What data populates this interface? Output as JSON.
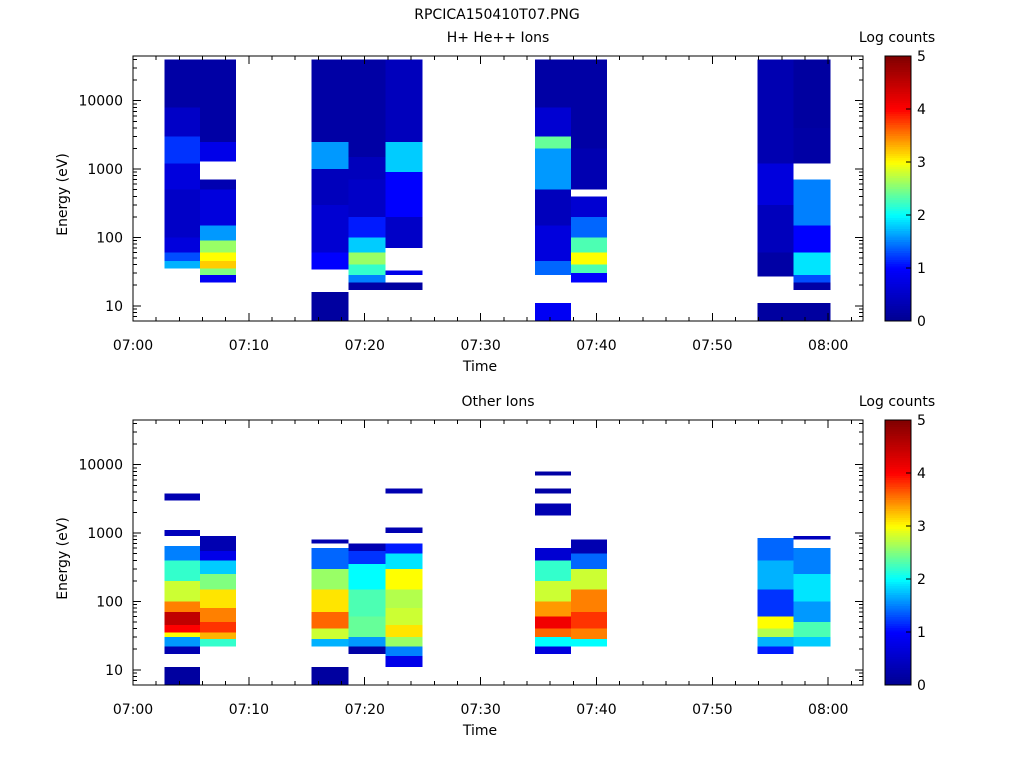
{
  "figure_title": "RPCICA150410T07.PNG",
  "colors": {
    "colormap": [
      "#00008f",
      "#0000ff",
      "#00ffff",
      "#ffff00",
      "#ff0000",
      "#800000"
    ],
    "empty": "#ffffff"
  },
  "chart_data": [
    {
      "type": "heatmap",
      "title": "H+ He++ Ions",
      "xlabel": "Time",
      "ylabel": "Energy (eV)",
      "colorbar_label": "Log counts",
      "colorbar_range": [
        0,
        5
      ],
      "colorbar_ticks": [
        "0",
        "1",
        "2",
        "3",
        "4",
        "5"
      ],
      "ylim": [
        6,
        45000
      ],
      "yscale": "log",
      "yticks": [
        {
          "v": 10,
          "label": "10"
        },
        {
          "v": 100,
          "label": "100"
        },
        {
          "v": 1000,
          "label": "1000"
        },
        {
          "v": 10000,
          "label": "10000"
        }
      ],
      "xlim_minutes": [
        0,
        63
      ],
      "xticks": [
        {
          "m": 0,
          "label": "07:00"
        },
        {
          "m": 10,
          "label": "07:10"
        },
        {
          "m": 20,
          "label": "07:20"
        },
        {
          "m": 30,
          "label": "07:30"
        },
        {
          "m": 40,
          "label": "07:40"
        },
        {
          "m": 50,
          "label": "07:50"
        },
        {
          "m": 60,
          "label": "08:00"
        }
      ],
      "columns": [
        {
          "t0": 2.7,
          "t1": 5.8,
          "bands": [
            {
              "e0": 35,
              "e1": 45,
              "v": 1.7
            },
            {
              "e0": 45,
              "e1": 60,
              "v": 1.3
            },
            {
              "e0": 60,
              "e1": 100,
              "v": 0.7
            },
            {
              "e0": 100,
              "e1": 500,
              "v": 0.5
            },
            {
              "e0": 500,
              "e1": 1200,
              "v": 0.7
            },
            {
              "e0": 1200,
              "e1": 3000,
              "v": 1.2
            },
            {
              "e0": 3000,
              "e1": 8000,
              "v": 0.5
            },
            {
              "e0": 8000,
              "e1": 40000,
              "v": 0.2
            }
          ]
        },
        {
          "t0": 5.8,
          "t1": 8.9,
          "bands": [
            {
              "e0": 22,
              "e1": 28,
              "v": 0.9
            },
            {
              "e0": 28,
              "e1": 35,
              "v": 2.5
            },
            {
              "e0": 35,
              "e1": 45,
              "v": 3.2
            },
            {
              "e0": 45,
              "e1": 60,
              "v": 3.0
            },
            {
              "e0": 60,
              "e1": 90,
              "v": 2.6
            },
            {
              "e0": 90,
              "e1": 150,
              "v": 1.6
            },
            {
              "e0": 150,
              "e1": 500,
              "v": 0.7
            },
            {
              "e0": 500,
              "e1": 700,
              "v": 0.3
            },
            {
              "e0": 1300,
              "e1": 2500,
              "v": 0.8
            },
            {
              "e0": 2500,
              "e1": 40000,
              "v": 0.2
            }
          ]
        },
        {
          "t0": 15.4,
          "t1": 18.6,
          "bands": [
            {
              "e0": 6,
              "e1": 16,
              "v": 0.15
            },
            {
              "e0": 34,
              "e1": 60,
              "v": 1.0
            },
            {
              "e0": 60,
              "e1": 300,
              "v": 0.6
            },
            {
              "e0": 300,
              "e1": 1000,
              "v": 0.4
            },
            {
              "e0": 1000,
              "e1": 2500,
              "v": 1.6
            },
            {
              "e0": 2500,
              "e1": 40000,
              "v": 0.2
            }
          ]
        },
        {
          "t0": 18.6,
          "t1": 21.8,
          "bands": [
            {
              "e0": 17,
              "e1": 22,
              "v": 0.2
            },
            {
              "e0": 22,
              "e1": 28,
              "v": 1.5
            },
            {
              "e0": 28,
              "e1": 40,
              "v": 2.2
            },
            {
              "e0": 40,
              "e1": 60,
              "v": 2.6
            },
            {
              "e0": 60,
              "e1": 100,
              "v": 1.8
            },
            {
              "e0": 100,
              "e1": 200,
              "v": 1.1
            },
            {
              "e0": 200,
              "e1": 700,
              "v": 0.5
            },
            {
              "e0": 700,
              "e1": 1500,
              "v": 0.4
            },
            {
              "e0": 1500,
              "e1": 40000,
              "v": 0.2
            }
          ]
        },
        {
          "t0": 21.8,
          "t1": 25.0,
          "bands": [
            {
              "e0": 17,
              "e1": 22,
              "v": 0.15
            },
            {
              "e0": 28,
              "e1": 33,
              "v": 0.8
            },
            {
              "e0": 70,
              "e1": 200,
              "v": 0.5
            },
            {
              "e0": 200,
              "e1": 900,
              "v": 1.0
            },
            {
              "e0": 900,
              "e1": 2500,
              "v": 1.8
            },
            {
              "e0": 2500,
              "e1": 40000,
              "v": 0.4
            }
          ]
        },
        {
          "t0": 34.7,
          "t1": 37.8,
          "bands": [
            {
              "e0": 6,
              "e1": 11,
              "v": 0.9
            },
            {
              "e0": 28,
              "e1": 45,
              "v": 1.4
            },
            {
              "e0": 45,
              "e1": 150,
              "v": 0.7
            },
            {
              "e0": 150,
              "e1": 500,
              "v": 0.4
            },
            {
              "e0": 500,
              "e1": 2000,
              "v": 1.6
            },
            {
              "e0": 2000,
              "e1": 3000,
              "v": 2.4
            },
            {
              "e0": 3000,
              "e1": 8000,
              "v": 0.6
            },
            {
              "e0": 8000,
              "e1": 40000,
              "v": 0.2
            }
          ]
        },
        {
          "t0": 37.8,
          "t1": 40.9,
          "bands": [
            {
              "e0": 22,
              "e1": 30,
              "v": 1.0
            },
            {
              "e0": 30,
              "e1": 40,
              "v": 2.3
            },
            {
              "e0": 40,
              "e1": 60,
              "v": 3.0
            },
            {
              "e0": 60,
              "e1": 100,
              "v": 2.3
            },
            {
              "e0": 100,
              "e1": 200,
              "v": 1.4
            },
            {
              "e0": 200,
              "e1": 400,
              "v": 0.6
            },
            {
              "e0": 500,
              "e1": 2000,
              "v": 0.3
            },
            {
              "e0": 2000,
              "e1": 40000,
              "v": 0.2
            }
          ]
        },
        {
          "t0": 53.9,
          "t1": 57.0,
          "bands": [
            {
              "e0": 6,
              "e1": 11,
              "v": 0.15
            },
            {
              "e0": 27,
              "e1": 60,
              "v": 0.2
            },
            {
              "e0": 60,
              "e1": 300,
              "v": 0.4
            },
            {
              "e0": 300,
              "e1": 1200,
              "v": 0.7
            },
            {
              "e0": 1200,
              "e1": 40000,
              "v": 0.3
            }
          ]
        },
        {
          "t0": 57.0,
          "t1": 60.2,
          "bands": [
            {
              "e0": 6,
              "e1": 11,
              "v": 0.15
            },
            {
              "e0": 17,
              "e1": 22,
              "v": 0.2
            },
            {
              "e0": 22,
              "e1": 28,
              "v": 1.3
            },
            {
              "e0": 28,
              "e1": 60,
              "v": 1.9
            },
            {
              "e0": 60,
              "e1": 150,
              "v": 1.0
            },
            {
              "e0": 150,
              "e1": 700,
              "v": 1.5
            },
            {
              "e0": 1200,
              "e1": 4000,
              "v": 0.2
            },
            {
              "e0": 4000,
              "e1": 40000,
              "v": 0.15
            }
          ]
        }
      ]
    },
    {
      "type": "heatmap",
      "title": "Other Ions",
      "xlabel": "Time",
      "ylabel": "Energy (eV)",
      "colorbar_label": "Log counts",
      "colorbar_range": [
        0,
        5
      ],
      "colorbar_ticks": [
        "0",
        "1",
        "2",
        "3",
        "4",
        "5"
      ],
      "ylim": [
        6,
        45000
      ],
      "yscale": "log",
      "yticks": [
        {
          "v": 10,
          "label": "10"
        },
        {
          "v": 100,
          "label": "100"
        },
        {
          "v": 1000,
          "label": "1000"
        },
        {
          "v": 10000,
          "label": "10000"
        }
      ],
      "xlim_minutes": [
        0,
        63
      ],
      "xticks": [
        {
          "m": 0,
          "label": "07:00"
        },
        {
          "m": 10,
          "label": "07:10"
        },
        {
          "m": 20,
          "label": "07:20"
        },
        {
          "m": 30,
          "label": "07:30"
        },
        {
          "m": 40,
          "label": "07:40"
        },
        {
          "m": 50,
          "label": "07:50"
        },
        {
          "m": 60,
          "label": "08:00"
        }
      ],
      "columns": [
        {
          "t0": 2.7,
          "t1": 5.8,
          "bands": [
            {
              "e0": 6,
              "e1": 11,
              "v": 0.15
            },
            {
              "e0": 17,
              "e1": 22,
              "v": 0.3
            },
            {
              "e0": 22,
              "e1": 30,
              "v": 1.6
            },
            {
              "e0": 30,
              "e1": 35,
              "v": 3.0
            },
            {
              "e0": 35,
              "e1": 45,
              "v": 4.0
            },
            {
              "e0": 45,
              "e1": 70,
              "v": 4.5
            },
            {
              "e0": 70,
              "e1": 100,
              "v": 3.5
            },
            {
              "e0": 100,
              "e1": 200,
              "v": 2.8
            },
            {
              "e0": 200,
              "e1": 400,
              "v": 2.2
            },
            {
              "e0": 400,
              "e1": 650,
              "v": 1.5
            },
            {
              "e0": 900,
              "e1": 1100,
              "v": 0.4
            },
            {
              "e0": 3000,
              "e1": 3800,
              "v": 0.3
            }
          ]
        },
        {
          "t0": 5.8,
          "t1": 8.9,
          "bands": [
            {
              "e0": 22,
              "e1": 28,
              "v": 2.2
            },
            {
              "e0": 28,
              "e1": 35,
              "v": 3.3
            },
            {
              "e0": 35,
              "e1": 50,
              "v": 3.8
            },
            {
              "e0": 50,
              "e1": 80,
              "v": 3.5
            },
            {
              "e0": 80,
              "e1": 150,
              "v": 3.1
            },
            {
              "e0": 150,
              "e1": 250,
              "v": 2.5
            },
            {
              "e0": 250,
              "e1": 400,
              "v": 1.8
            },
            {
              "e0": 400,
              "e1": 550,
              "v": 0.8
            },
            {
              "e0": 550,
              "e1": 900,
              "v": 0.3
            }
          ]
        },
        {
          "t0": 15.4,
          "t1": 18.6,
          "bands": [
            {
              "e0": 6,
              "e1": 11,
              "v": 0.15
            },
            {
              "e0": 22,
              "e1": 28,
              "v": 1.7
            },
            {
              "e0": 28,
              "e1": 40,
              "v": 2.8
            },
            {
              "e0": 40,
              "e1": 70,
              "v": 3.6
            },
            {
              "e0": 70,
              "e1": 150,
              "v": 3.1
            },
            {
              "e0": 150,
              "e1": 300,
              "v": 2.6
            },
            {
              "e0": 300,
              "e1": 600,
              "v": 1.4
            },
            {
              "e0": 700,
              "e1": 800,
              "v": 0.3
            }
          ]
        },
        {
          "t0": 18.6,
          "t1": 21.8,
          "bands": [
            {
              "e0": 17,
              "e1": 22,
              "v": 0.2
            },
            {
              "e0": 22,
              "e1": 30,
              "v": 1.6
            },
            {
              "e0": 30,
              "e1": 60,
              "v": 2.4
            },
            {
              "e0": 60,
              "e1": 150,
              "v": 2.3
            },
            {
              "e0": 150,
              "e1": 350,
              "v": 2.0
            },
            {
              "e0": 350,
              "e1": 550,
              "v": 1.2
            },
            {
              "e0": 550,
              "e1": 700,
              "v": 0.3
            }
          ]
        },
        {
          "t0": 21.8,
          "t1": 25.0,
          "bands": [
            {
              "e0": 11,
              "e1": 16,
              "v": 0.8
            },
            {
              "e0": 16,
              "e1": 22,
              "v": 1.5
            },
            {
              "e0": 22,
              "e1": 30,
              "v": 2.6
            },
            {
              "e0": 30,
              "e1": 45,
              "v": 3.1
            },
            {
              "e0": 45,
              "e1": 80,
              "v": 2.8
            },
            {
              "e0": 80,
              "e1": 150,
              "v": 2.7
            },
            {
              "e0": 150,
              "e1": 300,
              "v": 3.0
            },
            {
              "e0": 300,
              "e1": 500,
              "v": 1.9
            },
            {
              "e0": 500,
              "e1": 700,
              "v": 1.1
            },
            {
              "e0": 1000,
              "e1": 1200,
              "v": 0.3
            },
            {
              "e0": 3800,
              "e1": 4500,
              "v": 0.3
            }
          ]
        },
        {
          "t0": 34.7,
          "t1": 37.8,
          "bands": [
            {
              "e0": 17,
              "e1": 22,
              "v": 0.7
            },
            {
              "e0": 22,
              "e1": 30,
              "v": 2.0
            },
            {
              "e0": 30,
              "e1": 40,
              "v": 3.6
            },
            {
              "e0": 40,
              "e1": 60,
              "v": 4.1
            },
            {
              "e0": 60,
              "e1": 100,
              "v": 3.4
            },
            {
              "e0": 100,
              "e1": 200,
              "v": 2.8
            },
            {
              "e0": 200,
              "e1": 400,
              "v": 2.2
            },
            {
              "e0": 400,
              "e1": 600,
              "v": 0.6
            },
            {
              "e0": 1800,
              "e1": 2700,
              "v": 0.3
            },
            {
              "e0": 3800,
              "e1": 4500,
              "v": 0.2
            },
            {
              "e0": 7000,
              "e1": 8000,
              "v": 0.2
            }
          ]
        },
        {
          "t0": 37.8,
          "t1": 40.9,
          "bands": [
            {
              "e0": 22,
              "e1": 28,
              "v": 2.0
            },
            {
              "e0": 28,
              "e1": 40,
              "v": 3.5
            },
            {
              "e0": 40,
              "e1": 70,
              "v": 3.8
            },
            {
              "e0": 70,
              "e1": 150,
              "v": 3.5
            },
            {
              "e0": 150,
              "e1": 300,
              "v": 2.8
            },
            {
              "e0": 300,
              "e1": 500,
              "v": 1.4
            },
            {
              "e0": 500,
              "e1": 800,
              "v": 0.3
            }
          ]
        },
        {
          "t0": 53.9,
          "t1": 57.0,
          "bands": [
            {
              "e0": 17,
              "e1": 22,
              "v": 1.1
            },
            {
              "e0": 22,
              "e1": 30,
              "v": 1.7
            },
            {
              "e0": 30,
              "e1": 40,
              "v": 2.7
            },
            {
              "e0": 40,
              "e1": 60,
              "v": 3.0
            },
            {
              "e0": 60,
              "e1": 150,
              "v": 1.2
            },
            {
              "e0": 150,
              "e1": 400,
              "v": 1.7
            },
            {
              "e0": 400,
              "e1": 850,
              "v": 1.4
            }
          ]
        },
        {
          "t0": 57.0,
          "t1": 60.2,
          "bands": [
            {
              "e0": 22,
              "e1": 30,
              "v": 1.8
            },
            {
              "e0": 30,
              "e1": 50,
              "v": 2.3
            },
            {
              "e0": 50,
              "e1": 100,
              "v": 1.6
            },
            {
              "e0": 100,
              "e1": 250,
              "v": 1.9
            },
            {
              "e0": 250,
              "e1": 600,
              "v": 1.5
            },
            {
              "e0": 800,
              "e1": 900,
              "v": 0.4
            }
          ]
        }
      ]
    }
  ]
}
